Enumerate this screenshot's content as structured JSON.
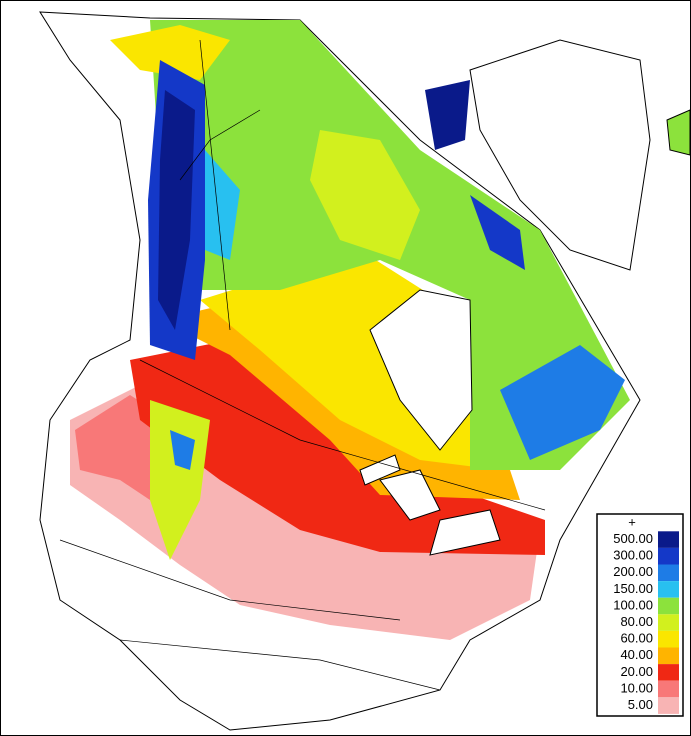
{
  "legend": {
    "top_label": "+",
    "entries": [
      {
        "label": "500.00",
        "color": "#0a1a8a"
      },
      {
        "label": "300.00",
        "color": "#1438c8"
      },
      {
        "label": "200.00",
        "color": "#1e7ce6"
      },
      {
        "label": "150.00",
        "color": "#28c0f0"
      },
      {
        "label": "100.00",
        "color": "#8ce23c"
      },
      {
        "label": "80.00",
        "color": "#d2f01e"
      },
      {
        "label": "60.00",
        "color": "#fae600"
      },
      {
        "label": "40.00",
        "color": "#ffb400"
      },
      {
        "label": "20.00",
        "color": "#f02814"
      },
      {
        "label": "10.00",
        "color": "#f87878"
      },
      {
        "label": "5.00",
        "color": "#f8b4b4"
      }
    ]
  }
}
